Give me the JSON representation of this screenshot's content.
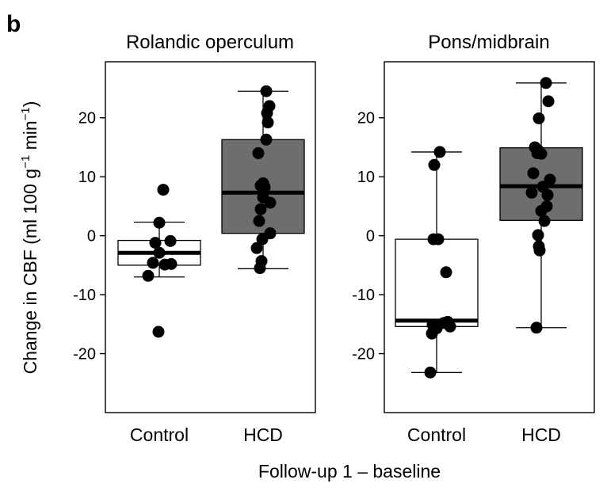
{
  "panel_letter": "b",
  "xlabel": "Follow-up 1 – baseline",
  "ylabel": {
    "prefix": "Change in CBF (ml 100 g",
    "sup1": "−1",
    "middle": " min",
    "sup2": "−1",
    "suffix": ")"
  },
  "chart_data": [
    {
      "type": "box",
      "title": "Rolandic operculum",
      "categories": [
        "Control",
        "HCD"
      ],
      "ylim": [
        -30,
        29.5
      ],
      "yticks": [
        20,
        10,
        0,
        -10,
        -20
      ],
      "ytick_labels": [
        "20",
        "10",
        "0",
        "-10",
        "-20"
      ],
      "box_colors": [
        "#ffffff",
        "#6e6e6e"
      ],
      "series": [
        {
          "category": "Control",
          "whisker_low": -7,
          "q1": -5,
          "median": -2.9,
          "q3": -0.8,
          "whisker_high": 2.3,
          "points": [
            7.8,
            2.2,
            -0.9,
            -1.2,
            -2.9,
            -4.8,
            -4.9,
            -4.6,
            -6.8,
            -16.3
          ],
          "jitter": [
            0.05,
            0.0,
            0.14,
            -0.05,
            0.0,
            0.15,
            0.07,
            -0.08,
            -0.14,
            -0.01
          ]
        },
        {
          "category": "HCD",
          "whisker_low": -5.6,
          "q1": 0.4,
          "median": 7.3,
          "q3": 16.3,
          "whisker_high": 24.5,
          "points": [
            24.5,
            22,
            20.8,
            19.2,
            16.3,
            14,
            8.9,
            8.5,
            8.2,
            6.5,
            5.6,
            4.5,
            2.5,
            0.4,
            -0.6,
            -2.1,
            -4.3,
            -5.5
          ],
          "jitter": [
            0.04,
            0.08,
            0.05,
            0.06,
            0.04,
            -0.06,
            0.0,
            -0.03,
            0.02,
            0.0,
            0.09,
            -0.03,
            -0.05,
            0.09,
            -0.01,
            -0.08,
            -0.02,
            -0.04
          ]
        }
      ]
    },
    {
      "type": "box",
      "title": "Pons/midbrain",
      "categories": [
        "Control",
        "HCD"
      ],
      "ylim": [
        -30,
        29.5
      ],
      "yticks": [
        20,
        10,
        0,
        -10,
        -20
      ],
      "ytick_labels": [
        "20",
        "10",
        "0",
        "-10",
        "-20"
      ],
      "box_colors": [
        "#ffffff",
        "#6e6e6e"
      ],
      "series": [
        {
          "category": "Control",
          "whisker_low": -23.2,
          "q1": -15.4,
          "median": -14.4,
          "q3": -0.6,
          "whisker_high": 14.2,
          "points": [
            14.2,
            12,
            -0.6,
            -0.6,
            -6.2,
            -14.6,
            -14.8,
            -15.1,
            -15.4,
            -15.7,
            -16.6,
            -23.2
          ],
          "jitter": [
            0.04,
            -0.03,
            -0.04,
            0.02,
            0.12,
            0.14,
            0.09,
            -0.05,
            0.17,
            0.0,
            -0.06,
            -0.08
          ]
        },
        {
          "category": "HCD",
          "whisker_low": -15.6,
          "q1": 2.6,
          "median": 8.4,
          "q3": 14.9,
          "whisker_high": 25.9,
          "points": [
            25.9,
            22.8,
            19.9,
            15,
            14.5,
            14,
            13.9,
            10.6,
            9.5,
            8.3,
            7.3,
            6.9,
            5,
            4.2,
            2.5,
            0.1,
            -1.8,
            -2.5,
            -15.6
          ],
          "jitter": [
            0.06,
            0.09,
            -0.03,
            -0.08,
            -0.04,
            -0.05,
            0.0,
            -0.1,
            0.11,
            0.02,
            -0.12,
            0.08,
            0.07,
            0.0,
            0.04,
            -0.04,
            -0.03,
            -0.02,
            -0.06
          ]
        }
      ]
    }
  ]
}
